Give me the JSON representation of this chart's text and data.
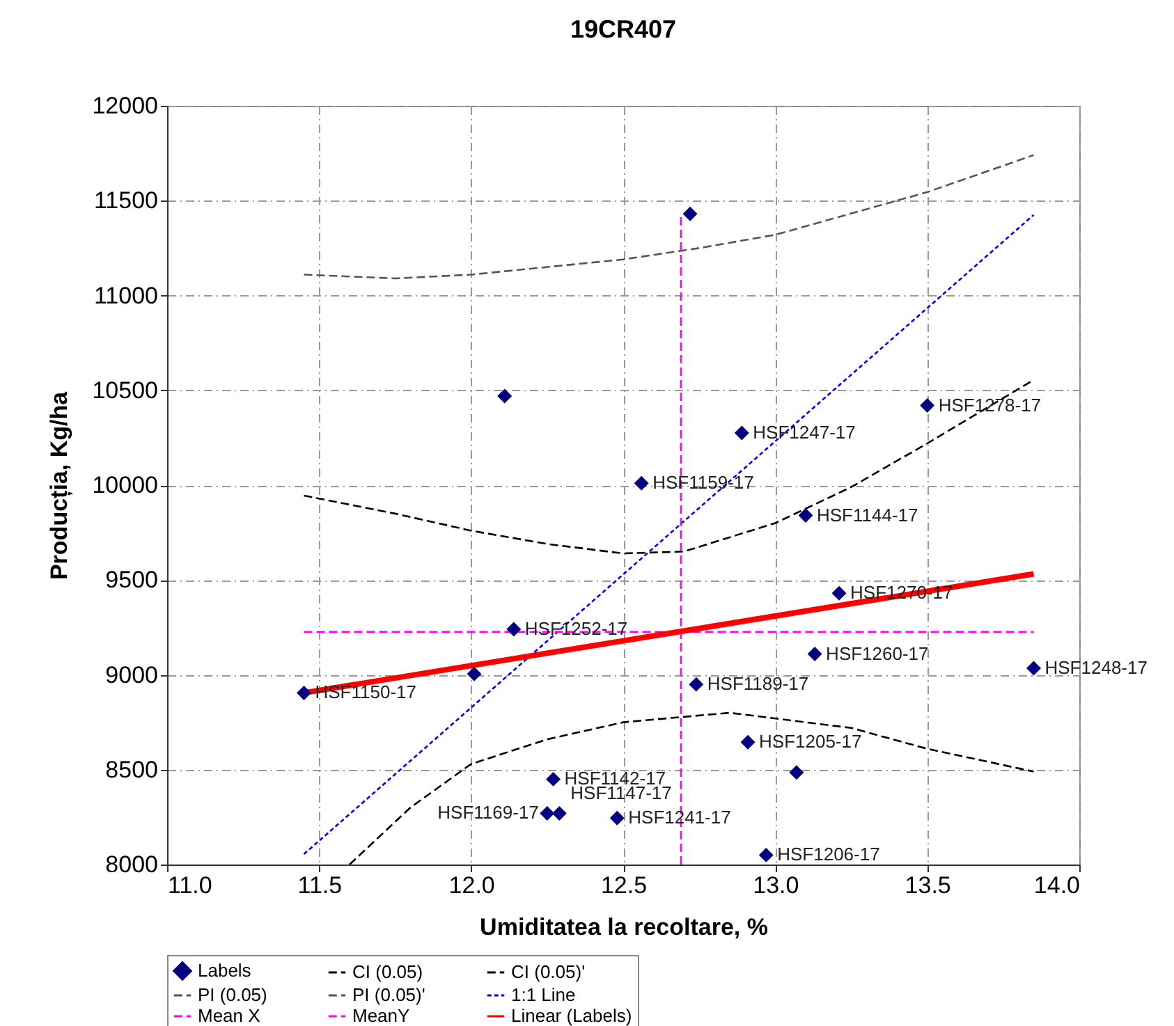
{
  "chart_data": {
    "type": "scatter",
    "title": "19CR407",
    "xlabel": "Umiditatea la recoltare, %",
    "ylabel": "Producția, Kg/ha",
    "xlim": [
      11,
      14
    ],
    "xticks": [
      {
        "value": 11,
        "label": "11.0"
      },
      {
        "value": 11.5,
        "label": "11.5"
      },
      {
        "value": 12,
        "label": "12.0"
      },
      {
        "value": 12.5,
        "label": "12.5"
      },
      {
        "value": 13,
        "label": "13.0"
      },
      {
        "value": 13.5,
        "label": "13.5"
      },
      {
        "value": 14,
        "label": "14.0"
      }
    ],
    "ylim": [
      8000,
      12000
    ],
    "yticks": [
      8000,
      8500,
      9000,
      9500,
      10000,
      10500,
      11000,
      11500,
      12000
    ],
    "grid": true,
    "legend": "bottom",
    "series": [
      {
        "name": "Labels",
        "marker": "diamond",
        "color": "#000080",
        "x": [
          12.72,
          12.11,
          12.89,
          13.5,
          12.56,
          13.1,
          13.21,
          12.14,
          13.13,
          13.85,
          12.01,
          11.45,
          12.74,
          12.91,
          13.07,
          12.27,
          12.25,
          12.29,
          12.48,
          12.97
        ],
        "values": [
          11430,
          10470,
          10275,
          10420,
          10010,
          9840,
          9430,
          9240,
          9110,
          9035,
          9005,
          8905,
          8950,
          8645,
          8485,
          8450,
          8270,
          8270,
          8245,
          8050
        ]
      },
      {
        "name": "CI (0.05)",
        "type": "line",
        "line_style": "dashed",
        "color": "#000000",
        "x": [
          11.45,
          11.75,
          12.0,
          12.25,
          12.5,
          12.7,
          13.0,
          13.25,
          13.5,
          13.85
        ],
        "values": [
          9945,
          9850,
          9760,
          9690,
          9640,
          9650,
          9800,
          9990,
          10220,
          10555
        ]
      },
      {
        "name": "CI (0.05)'",
        "type": "line",
        "line_style": "dashed",
        "color": "#000000",
        "x": [
          11.6,
          11.8,
          12.0,
          12.25,
          12.5,
          12.85,
          13.25,
          13.5,
          13.85
        ],
        "values": [
          8000,
          8300,
          8530,
          8660,
          8750,
          8800,
          8720,
          8610,
          8490
        ]
      },
      {
        "name": "PI (0.05)",
        "type": "line",
        "line_style": "dashed",
        "color": "#555555",
        "x": [
          11.45,
          11.75,
          12.0,
          12.5,
          12.75,
          13.0,
          13.5,
          13.85
        ],
        "values": [
          11110,
          11090,
          11110,
          11190,
          11250,
          11320,
          11545,
          11740
        ]
      },
      {
        "name": "PI (0.05)'",
        "type": "line",
        "line_style": "dashed",
        "color": "#555555"
      },
      {
        "name": "1:1 Line",
        "type": "line",
        "line_style": "dotted",
        "color": "#0000ff",
        "x": [
          11.45,
          13.85
        ],
        "values": [
          8055,
          11425
        ]
      },
      {
        "name": "Mean X",
        "type": "line",
        "line_style": "dashed",
        "color": "#ff00ff",
        "x": [
          12.69,
          12.69
        ],
        "values": [
          8000,
          11430
        ]
      },
      {
        "name": "MeanY",
        "type": "line",
        "line_style": "dashed",
        "color": "#ff00ff",
        "x": [
          11.45,
          13.85
        ],
        "values": [
          9226,
          9226
        ]
      },
      {
        "name": "Linear (Labels)",
        "type": "line",
        "line_style": "solid",
        "color": "#ff0000",
        "x": [
          11.45,
          13.85
        ],
        "values": [
          8905,
          9532
        ]
      }
    ],
    "annotations": [
      {
        "text": "HSF1247-17",
        "x": 12.89,
        "y": 10275
      },
      {
        "text": "HSF1278-17",
        "x": 13.5,
        "y": 10420
      },
      {
        "text": "HSF1159-17",
        "x": 12.56,
        "y": 10010
      },
      {
        "text": "HSF1144-17",
        "x": 13.1,
        "y": 9840
      },
      {
        "text": "HSF1270-17",
        "x": 13.21,
        "y": 9430
      },
      {
        "text": "HSF1252-17",
        "x": 12.14,
        "y": 9240
      },
      {
        "text": "HSF1260-17",
        "x": 13.13,
        "y": 9110
      },
      {
        "text": "HSF1248-17",
        "x": 13.85,
        "y": 9035
      },
      {
        "text": "HSF1150-17",
        "x": 11.45,
        "y": 8905
      },
      {
        "text": "HSF1189-17",
        "x": 12.74,
        "y": 8950
      },
      {
        "text": "HSF1205-17",
        "x": 12.91,
        "y": 8645
      },
      {
        "text": "HSF1142-17",
        "x": 12.27,
        "y": 8450
      },
      {
        "text": "HSF1169-17",
        "x": 12.25,
        "y": 8270
      },
      {
        "text": "HSF1147-17",
        "x": 12.29,
        "y": 8270
      },
      {
        "text": "HSF1241-17",
        "x": 12.48,
        "y": 8245
      },
      {
        "text": "HSF1206-17",
        "x": 12.97,
        "y": 8050
      }
    ]
  }
}
